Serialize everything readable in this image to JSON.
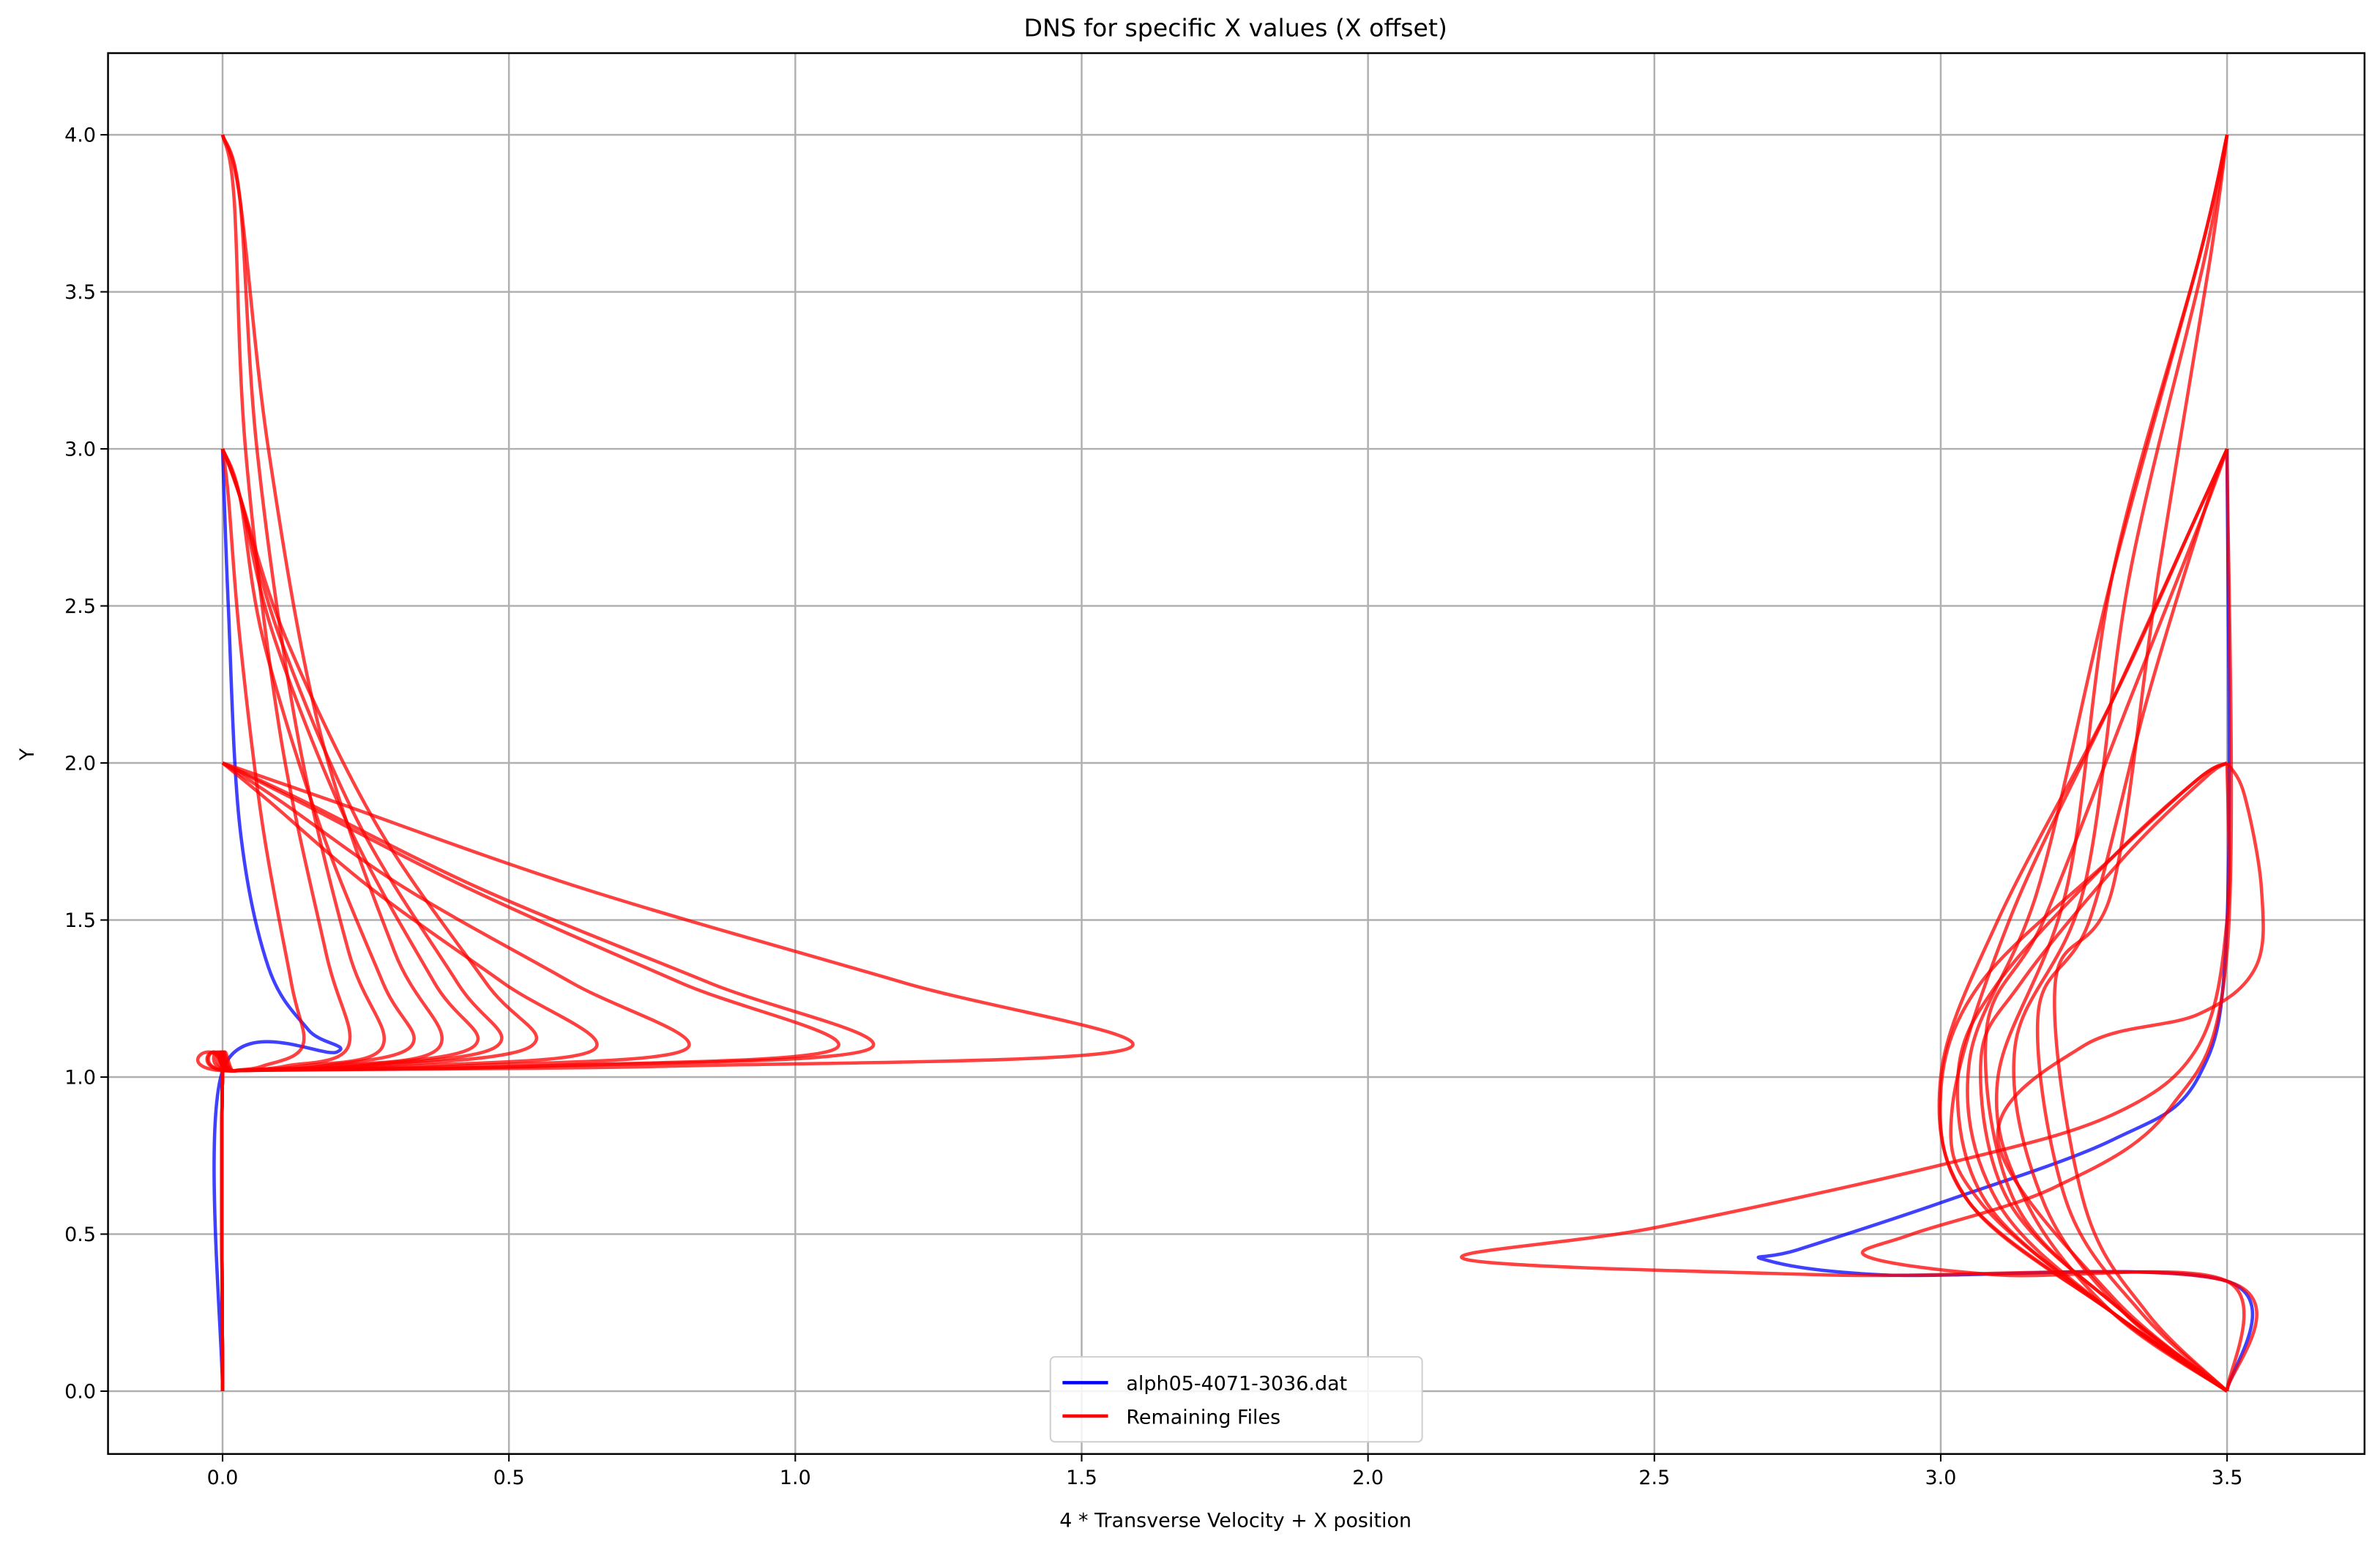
{
  "chart_data": {
    "type": "line",
    "title": "DNS for specific X values (X offset)",
    "x_label": "4 * Transverse Velocity + X position",
    "y_label": "Y",
    "xlim": [
      -0.2,
      3.74
    ],
    "ylim": [
      -0.2,
      4.26
    ],
    "xticks": [
      {
        "value": 0,
        "label": "0.0"
      },
      0.5,
      {
        "value": 1,
        "label": "1.0"
      },
      1.5,
      {
        "value": 2,
        "label": "2.0"
      },
      2.5,
      {
        "value": 3,
        "label": "3.0"
      },
      3.5
    ],
    "yticks": [
      {
        "value": 0,
        "label": "0.0"
      },
      0.5,
      {
        "value": 1,
        "label": "1.0"
      },
      1.5,
      {
        "value": 2,
        "label": "2.0"
      },
      2.5,
      {
        "value": 3,
        "label": "3.0"
      },
      3.5,
      {
        "value": 4,
        "label": "4.0"
      }
    ],
    "grid": true,
    "legend_loc": "lower center",
    "series": [
      {
        "name": "alph05-4071-3036.dat",
        "color": "#0000ff",
        "x": [
          0,
          0,
          0.2,
          0.15,
          0.08,
          0.03,
          0.01,
          0,
          null,
          3.5,
          3.5,
          2.9,
          2.69,
          2.75,
          3.0,
          3.3,
          3.45,
          3.5,
          3.5
        ],
        "values": [
          0,
          1.02,
          1.08,
          1.15,
          1.35,
          1.8,
          2.5,
          3,
          null,
          0,
          0.35,
          0.37,
          0.42,
          0.45,
          0.6,
          0.8,
          1.0,
          1.5,
          3
        ]
      },
      {
        "name": "Remaining Files",
        "color": "#ff0000",
        "x": [
          0,
          0,
          0.02,
          0.79,
          1.58,
          1.19,
          0.63,
          0.19,
          0
        ],
        "values": [
          0,
          1,
          1.02,
          1.035,
          1.09,
          1.3,
          1.6,
          1.88,
          2
        ]
      },
      {
        "color": "#ff0000",
        "x": [
          0,
          0,
          0.02,
          0.57,
          1.13,
          0.85,
          0.45,
          0.14,
          0
        ],
        "values": [
          0,
          1,
          1.02,
          1.035,
          1.09,
          1.3,
          1.6,
          1.88,
          2
        ]
      },
      {
        "color": "#ff0000",
        "x": [
          0,
          0,
          0.02,
          0.54,
          1.07,
          0.8,
          0.43,
          0.13,
          0
        ],
        "values": [
          0,
          1,
          1.02,
          1.035,
          1.09,
          1.3,
          1.6,
          1.88,
          2
        ]
      },
      {
        "color": "#ff0000",
        "x": [
          0,
          0,
          0.02,
          0.41,
          0.81,
          0.61,
          0.32,
          0.1,
          0
        ],
        "values": [
          0,
          1,
          1.02,
          1.035,
          1.09,
          1.3,
          1.6,
          1.88,
          2
        ]
      },
      {
        "color": "#ff0000",
        "x": [
          0,
          0,
          0.02,
          0.33,
          0.65,
          0.49,
          0.26,
          0.08,
          0
        ],
        "values": [
          0,
          1,
          1.02,
          1.035,
          1.09,
          1.3,
          1.6,
          1.88,
          2
        ]
      },
      {
        "color": "#ff0000",
        "x": [
          0,
          0,
          0.02,
          0.27,
          0.54,
          0.46,
          0.27,
          0.11,
          0.03,
          0
        ],
        "values": [
          0,
          1,
          1.02,
          1.035,
          1.1,
          1.3,
          1.8,
          2.4,
          2.85,
          3
        ]
      },
      {
        "color": "#ff0000",
        "x": [
          0,
          0,
          0.02,
          0.24,
          0.48,
          0.41,
          0.24,
          0.1,
          0.03,
          0
        ],
        "values": [
          0,
          1,
          1.02,
          1.035,
          1.1,
          1.3,
          1.8,
          2.4,
          2.85,
          3
        ]
      },
      {
        "color": "#ff0000",
        "x": [
          0,
          0,
          0.02,
          0.22,
          0.44,
          0.37,
          0.22,
          0.09,
          0.03,
          0
        ],
        "values": [
          0,
          1,
          1.02,
          1.035,
          1.1,
          1.3,
          1.8,
          2.4,
          2.85,
          3
        ]
      },
      {
        "color": "#ff0000",
        "x": [
          0,
          0,
          0.02,
          0.17,
          0.33,
          0.28,
          0.17,
          0.07,
          0.03,
          0
        ],
        "values": [
          0,
          1,
          1.02,
          1.035,
          1.1,
          1.3,
          1.8,
          2.4,
          2.85,
          3
        ]
      },
      {
        "color": "#ff0000",
        "x": [
          0,
          0,
          0.02,
          0.07,
          0.14,
          0.12,
          0.07,
          0.03,
          0.01,
          0
        ],
        "values": [
          0,
          1,
          1.02,
          1.035,
          1.1,
          1.3,
          1.8,
          2.4,
          2.85,
          3
        ]
      },
      {
        "color": "#ff0000",
        "x": [
          0,
          0,
          0.02,
          0.19,
          0.38,
          0.3,
          0.17,
          0.08,
          0.03,
          0
        ],
        "values": [
          0,
          1,
          1.02,
          1.035,
          1.1,
          1.4,
          2.1,
          3.0,
          3.8,
          4
        ]
      },
      {
        "color": "#ff0000",
        "x": [
          0,
          0,
          0.02,
          0.14,
          0.28,
          0.22,
          0.13,
          0.06,
          0.03,
          0
        ],
        "values": [
          0,
          1,
          1.02,
          1.035,
          1.1,
          1.4,
          2.1,
          3.0,
          3.8,
          4
        ]
      },
      {
        "color": "#ff0000",
        "x": [
          0,
          0,
          0.02,
          0.11,
          0.22,
          0.18,
          0.1,
          0.04,
          0.02,
          0
        ],
        "values": [
          0,
          1,
          1.02,
          1.035,
          1.1,
          1.4,
          2.1,
          3.0,
          3.8,
          4
        ]
      },
      {
        "color": "#ff0000",
        "x": [
          3.5,
          3.3,
          3.05,
          3.0,
          3.07,
          3.3,
          3.45,
          3.5
        ],
        "values": [
          0,
          0.25,
          0.6,
          0.95,
          1.3,
          1.7,
          1.95,
          2
        ]
      },
      {
        "color": "#ff0000",
        "x": [
          3.5,
          3.3,
          3.08,
          3.03,
          3.1,
          3.3,
          3.45,
          3.5
        ],
        "values": [
          0,
          0.25,
          0.6,
          1.0,
          1.3,
          1.7,
          1.95,
          2
        ]
      },
      {
        "color": "#ff0000",
        "x": [
          3.5,
          3.32,
          3.12,
          3.07,
          3.14,
          3.32,
          3.46,
          3.5
        ],
        "values": [
          0,
          0.25,
          0.6,
          1.05,
          1.3,
          1.7,
          1.95,
          2
        ]
      },
      {
        "color": "#ff0000",
        "x": [
          3.5,
          3.3,
          3.05,
          3.0,
          3.1,
          3.3,
          3.45,
          3.5
        ],
        "values": [
          0,
          0.25,
          0.6,
          1.0,
          1.5,
          2.2,
          2.8,
          3
        ]
      },
      {
        "color": "#ff0000",
        "x": [
          3.5,
          3.3,
          3.07,
          3.02,
          3.12,
          3.3,
          3.45,
          3.5
        ],
        "values": [
          0,
          0.25,
          0.6,
          0.9,
          1.5,
          2.2,
          2.8,
          3
        ]
      },
      {
        "color": "#ff0000",
        "x": [
          3.5,
          3.32,
          3.13,
          3.08,
          3.18,
          3.33,
          3.46,
          3.5
        ],
        "values": [
          0,
          0.25,
          0.6,
          1.15,
          1.5,
          2.2,
          2.8,
          3
        ]
      },
      {
        "color": "#ff0000",
        "x": [
          3.5,
          3.35,
          3.22,
          3.17,
          3.26,
          3.36,
          3.46,
          3.5
        ],
        "values": [
          0,
          0.25,
          0.6,
          1.2,
          1.5,
          2.2,
          2.8,
          3
        ]
      },
      {
        "color": "#ff0000",
        "x": [
          3.5,
          3.3,
          3.15,
          3.1,
          3.22,
          3.3,
          3.45,
          3.5
        ],
        "values": [
          0,
          0.25,
          0.6,
          1.0,
          1.6,
          2.6,
          3.6,
          4
        ]
      },
      {
        "color": "#ff0000",
        "x": [
          3.5,
          3.32,
          3.18,
          3.13,
          3.25,
          3.33,
          3.46,
          3.5
        ],
        "values": [
          0,
          0.25,
          0.6,
          1.1,
          1.6,
          2.6,
          3.6,
          4
        ]
      },
      {
        "color": "#ff0000",
        "x": [
          3.5,
          3.3,
          3.1,
          3.05,
          3.17,
          3.3,
          3.45,
          3.5
        ],
        "values": [
          0,
          0.25,
          0.6,
          1.05,
          1.6,
          2.6,
          3.6,
          4
        ]
      },
      {
        "color": "#ff0000",
        "x": [
          3.5,
          3.36,
          3.25,
          3.2,
          3.3,
          3.38,
          3.47,
          3.5
        ],
        "values": [
          0,
          0.25,
          0.6,
          1.3,
          1.6,
          2.6,
          3.6,
          4
        ]
      },
      {
        "color": "#ff0000",
        "x": [
          3.5,
          3.5,
          2.8,
          2.17,
          2.5,
          3.0,
          3.3,
          3.45,
          3.5,
          3.5
        ],
        "values": [
          0,
          0.35,
          0.37,
          0.42,
          0.52,
          0.72,
          0.88,
          1.1,
          1.5,
          2
        ]
      },
      {
        "color": "#ff0000",
        "x": [
          3.5,
          3.5,
          3.1,
          2.87,
          2.95,
          3.2,
          3.4,
          3.5,
          3.5
        ],
        "values": [
          0,
          0.35,
          0.37,
          0.43,
          0.5,
          0.65,
          0.9,
          1.4,
          3
        ]
      },
      {
        "color": "#ff0000",
        "x": [
          3.5,
          3.3,
          3.1,
          3.25,
          3.45,
          3.55,
          3.56,
          3.53,
          3.5
        ],
        "values": [
          0,
          0.3,
          0.8,
          1.1,
          1.2,
          1.35,
          1.6,
          1.9,
          2
        ]
      }
    ]
  }
}
